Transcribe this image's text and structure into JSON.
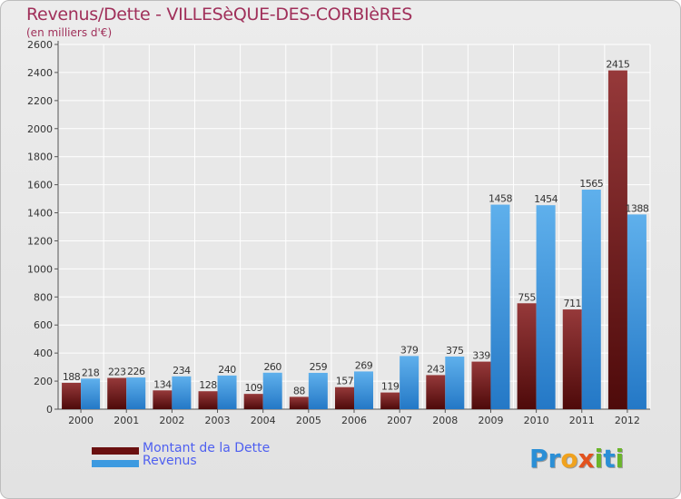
{
  "chart_data": {
    "type": "bar",
    "title": "Revenus/Dette - VILLESèQUE-DES-CORBIèRES",
    "subtitle": "(en milliers d'€)",
    "categories": [
      "2000",
      "2001",
      "2002",
      "2003",
      "2004",
      "2005",
      "2006",
      "2007",
      "2008",
      "2009",
      "2010",
      "2011",
      "2012"
    ],
    "series": [
      {
        "name": "Montant de la Dette",
        "color": "#7a1a1a",
        "values": [
          188,
          223,
          134,
          128,
          109,
          88,
          157,
          119,
          243,
          339,
          755,
          711,
          2415
        ]
      },
      {
        "name": "Revenus",
        "color": "#3d9ae0",
        "values": [
          218,
          226,
          234,
          240,
          260,
          259,
          269,
          379,
          375,
          1458,
          1454,
          1565,
          1388
        ]
      }
    ],
    "ylim": [
      0,
      2600
    ],
    "yticks": [
      0,
      200,
      400,
      600,
      800,
      1000,
      1200,
      1400,
      1600,
      1800,
      2000,
      2200,
      2400,
      2600
    ],
    "grid": true,
    "legend_position": "bottom-left"
  },
  "logo": {
    "letters": [
      {
        "char": "P",
        "color": "#2b8fd6"
      },
      {
        "char": "r",
        "color": "#2b8fd6"
      },
      {
        "char": "o",
        "color": "#f0a21e"
      },
      {
        "char": "x",
        "color": "#e2521e"
      },
      {
        "char": "i",
        "color": "#6bb52a"
      },
      {
        "char": "t",
        "color": "#2b8fd6"
      },
      {
        "char": "i",
        "color": "#6bb52a"
      }
    ]
  }
}
